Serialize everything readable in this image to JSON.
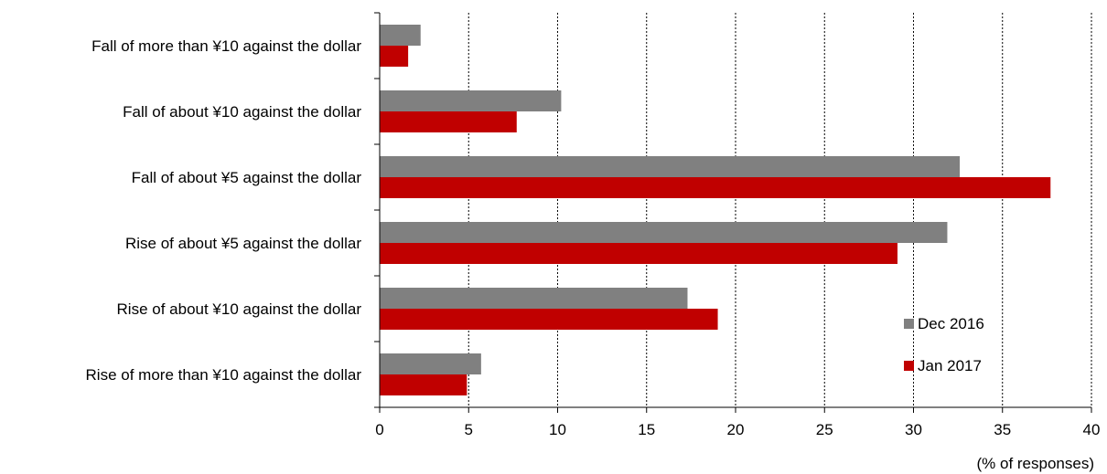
{
  "chart_data": {
    "type": "bar",
    "orientation": "horizontal",
    "categories": [
      "Fall of more than ¥10 against the dollar",
      "Fall of about ¥10 against the dollar",
      "Fall of about ¥5 against the dollar",
      "Rise of about ¥5 against the dollar",
      "Rise of about ¥10 against the dollar",
      "Rise of more than ¥10 against the dollar"
    ],
    "series": [
      {
        "name": "Dec 2016",
        "color": "#808080",
        "values": [
          2.3,
          10.2,
          32.6,
          31.9,
          17.3,
          5.7
        ]
      },
      {
        "name": "Jan 2017",
        "color": "#c00000",
        "values": [
          1.6,
          7.7,
          37.7,
          29.1,
          19.0,
          4.9
        ]
      }
    ],
    "xlim": [
      0,
      40
    ],
    "xticks": [
      0,
      5,
      10,
      15,
      20,
      25,
      30,
      35,
      40
    ],
    "xlabel": "(% of responses)",
    "grid": "vertical dashed",
    "legend_position": "lower-right"
  }
}
